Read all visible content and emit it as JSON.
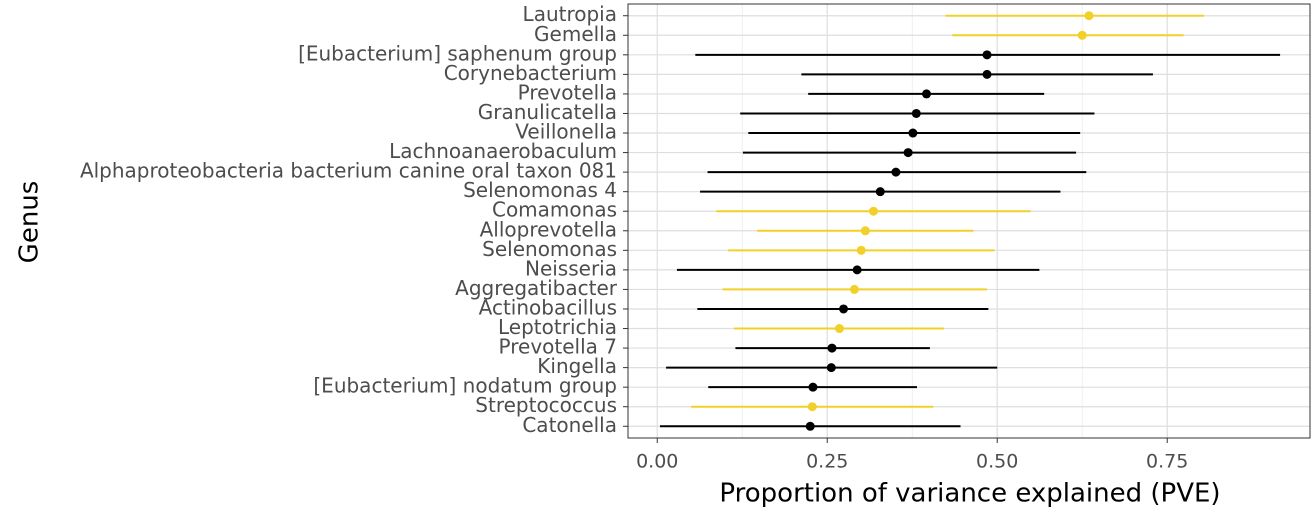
{
  "chart_data": {
    "type": "pointrange",
    "x_label": "Proportion of variance explained (PVE)",
    "y_label": "Genus",
    "categories": [
      "Lautropia",
      "Gemella",
      "[Eubacterium] saphenum group",
      "Corynebacterium",
      "Prevotella",
      "Granulicatella",
      "Veillonella",
      "Lachnoanaerobaculum",
      "Alphaproteobacteria bacterium canine oral taxon 081",
      "Selenomonas 4",
      "Comamonas",
      "Alloprevotella",
      "Selenomonas",
      "Neisseria",
      "Aggregatibacter",
      "Actinobacillus",
      "Leptotrichia",
      "Prevotella 7",
      "Kingella",
      "[Eubacterium] nodatum group",
      "Streptococcus",
      "Catonella"
    ],
    "values": [
      0.635,
      0.625,
      0.485,
      0.485,
      0.396,
      0.381,
      0.376,
      0.369,
      0.351,
      0.328,
      0.318,
      0.306,
      0.3,
      0.294,
      0.29,
      0.274,
      0.268,
      0.257,
      0.256,
      0.229,
      0.228,
      0.225
    ],
    "lower": [
      0.424,
      0.434,
      0.056,
      0.212,
      0.222,
      0.122,
      0.134,
      0.126,
      0.074,
      0.063,
      0.087,
      0.147,
      0.104,
      0.029,
      0.096,
      0.059,
      0.113,
      0.115,
      0.013,
      0.075,
      0.05,
      0.004
    ],
    "upper": [
      0.804,
      0.774,
      0.916,
      0.729,
      0.569,
      0.643,
      0.622,
      0.616,
      0.631,
      0.593,
      0.549,
      0.465,
      0.496,
      0.562,
      0.485,
      0.487,
      0.422,
      0.401,
      0.5,
      0.382,
      0.406,
      0.446
    ],
    "colors": [
      "#f2d02a",
      "#f2d02a",
      "#000000",
      "#000000",
      "#000000",
      "#000000",
      "#000000",
      "#000000",
      "#000000",
      "#000000",
      "#f2d02a",
      "#f2d02a",
      "#f2d02a",
      "#000000",
      "#f2d02a",
      "#000000",
      "#f2d02a",
      "#000000",
      "#000000",
      "#000000",
      "#f2d02a",
      "#000000"
    ],
    "xlim": [
      -0.043,
      0.96
    ],
    "xticks": [
      {
        "value": 0,
        "label": "0.00"
      },
      {
        "value": 0.25,
        "label": "0.25"
      },
      {
        "value": 0.5,
        "label": "0.50"
      },
      {
        "value": 0.75,
        "label": "0.75"
      }
    ],
    "grid": true
  }
}
